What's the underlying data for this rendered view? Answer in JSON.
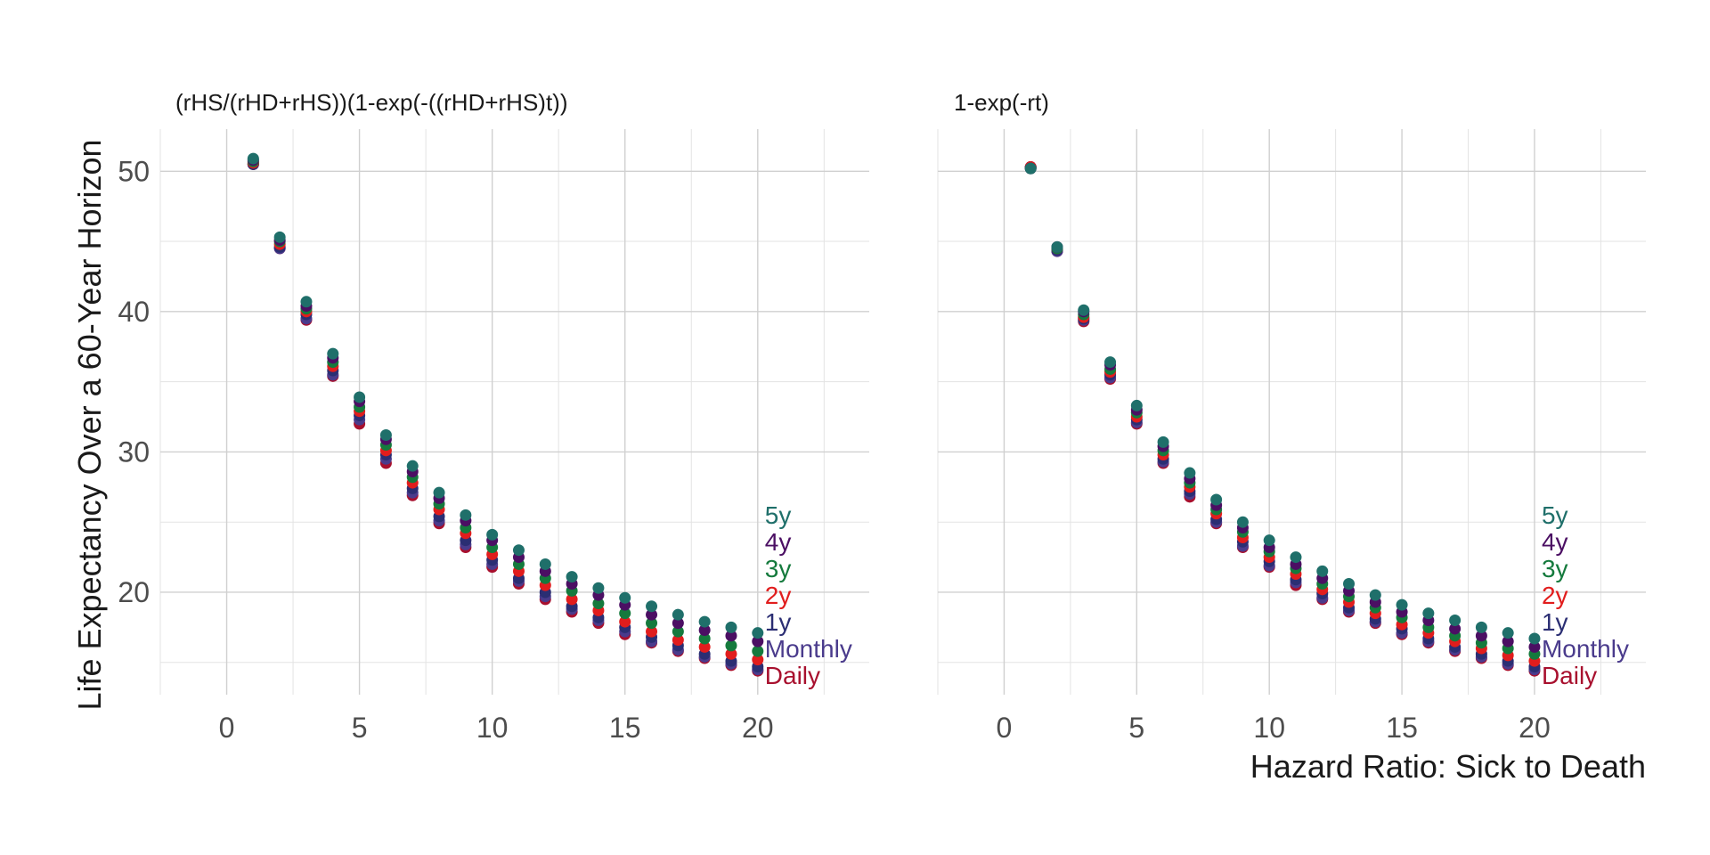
{
  "chart_data": {
    "type": "scatter",
    "ylabel": "Life Expectancy Over a 60-Year Horizon",
    "xlabel": "Hazard Ratio: Sick to Death",
    "xlim": [
      -2.5,
      24.2
    ],
    "ylim": [
      12.7,
      53
    ],
    "x_ticks": [
      "0",
      "5",
      "10",
      "15",
      "20"
    ],
    "y_ticks": [
      "20",
      "30",
      "40",
      "50"
    ],
    "grid": true,
    "x": [
      1,
      2,
      3,
      4,
      5,
      6,
      7,
      8,
      9,
      10,
      11,
      12,
      13,
      14,
      15,
      16,
      17,
      18,
      19,
      20
    ],
    "series_order": [
      "Daily",
      "Monthly",
      "1y",
      "2y",
      "3y",
      "4y",
      "5y"
    ],
    "series_colors": {
      "5y": "#1f6f6a",
      "4y": "#4b0f63",
      "3y": "#157a3d",
      "2y": "#e11d1d",
      "1y": "#2b2e73",
      "Monthly": "#4a3b8c",
      "Daily": "#a8102e"
    },
    "panels": [
      {
        "title": "(rHS/(rHD+rHS))(1-exp(-((rHD+rHS)t))",
        "series": [
          {
            "name": "5y",
            "values": [
              50.9,
              45.3,
              40.7,
              37.0,
              33.9,
              31.2,
              29.0,
              27.1,
              25.5,
              24.1,
              23.0,
              22.0,
              21.1,
              20.3,
              19.6,
              19.0,
              18.4,
              17.9,
              17.5,
              17.1
            ]
          },
          {
            "name": "4y",
            "values": [
              50.8,
              45.1,
              40.4,
              36.7,
              33.6,
              30.9,
              28.6,
              26.7,
              25.1,
              23.7,
              22.5,
              21.5,
              20.6,
              19.8,
              19.1,
              18.4,
              17.8,
              17.3,
              16.9,
              16.5
            ]
          },
          {
            "name": "3y",
            "values": [
              50.7,
              45.0,
              40.2,
              36.4,
              33.2,
              30.5,
              28.2,
              26.3,
              24.6,
              23.2,
              22.0,
              21.0,
              20.1,
              19.2,
              18.5,
              17.8,
              17.2,
              16.7,
              16.2,
              15.8
            ]
          },
          {
            "name": "2y",
            "values": [
              50.6,
              44.8,
              40.0,
              36.1,
              32.9,
              30.1,
              27.8,
              25.9,
              24.2,
              22.7,
              21.5,
              20.5,
              19.5,
              18.7,
              17.9,
              17.2,
              16.6,
              16.1,
              15.6,
              15.2
            ]
          },
          {
            "name": "1y",
            "values": [
              50.5,
              44.6,
              39.8,
              35.8,
              32.6,
              29.8,
              27.4,
              25.4,
              23.7,
              22.3,
              21.0,
              20.0,
              19.0,
              18.2,
              17.5,
              16.8,
              16.2,
              15.6,
              15.1,
              14.7
            ]
          },
          {
            "name": "Monthly",
            "values": [
              50.5,
              44.5,
              39.5,
              35.5,
              32.3,
              29.5,
              27.1,
              25.1,
              23.4,
              22.0,
              20.8,
              19.7,
              18.8,
              18.0,
              17.2,
              16.5,
              15.9,
              15.4,
              14.9,
              14.5
            ]
          },
          {
            "name": "Daily",
            "values": [
              50.5,
              44.5,
              39.4,
              35.4,
              32.0,
              29.2,
              26.9,
              24.9,
              23.2,
              21.8,
              20.6,
              19.5,
              18.6,
              17.8,
              17.0,
              16.4,
              15.8,
              15.3,
              14.8,
              14.4
            ]
          }
        ]
      },
      {
        "title": "1-exp(-rt)",
        "series": [
          {
            "name": "5y",
            "values": [
              50.2,
              44.6,
              40.1,
              36.4,
              33.3,
              30.7,
              28.5,
              26.6,
              25.0,
              23.7,
              22.5,
              21.5,
              20.6,
              19.8,
              19.1,
              18.5,
              18.0,
              17.5,
              17.1,
              16.7
            ]
          },
          {
            "name": "4y",
            "values": [
              50.2,
              44.6,
              40.0,
              36.2,
              33.0,
              30.4,
              28.1,
              26.2,
              24.6,
              23.2,
              22.0,
              21.0,
              20.1,
              19.3,
              18.6,
              18.0,
              17.4,
              16.9,
              16.5,
              16.1
            ]
          },
          {
            "name": "3y",
            "values": [
              50.2,
              44.5,
              39.8,
              35.9,
              32.8,
              30.1,
              27.8,
              25.9,
              24.3,
              22.9,
              21.7,
              20.6,
              19.7,
              18.9,
              18.2,
              17.5,
              16.9,
              16.4,
              16.0,
              15.6
            ]
          },
          {
            "name": "2y",
            "values": [
              50.3,
              44.5,
              39.6,
              35.7,
              32.5,
              29.8,
              27.5,
              25.6,
              23.9,
              22.5,
              21.3,
              20.2,
              19.3,
              18.5,
              17.7,
              17.1,
              16.5,
              16.0,
              15.5,
              15.1
            ]
          },
          {
            "name": "1y",
            "values": [
              50.3,
              44.4,
              39.5,
              35.5,
              32.3,
              29.5,
              27.2,
              25.2,
              23.6,
              22.2,
              20.9,
              19.9,
              18.9,
              18.1,
              17.4,
              16.7,
              16.1,
              15.6,
              15.1,
              14.7
            ]
          },
          {
            "name": "Monthly",
            "values": [
              50.3,
              44.3,
              39.4,
              35.3,
              32.1,
              29.3,
              27.0,
              25.0,
              23.3,
              21.9,
              20.7,
              19.6,
              18.7,
              17.9,
              17.1,
              16.5,
              15.9,
              15.4,
              14.9,
              14.5
            ]
          },
          {
            "name": "Daily",
            "values": [
              50.3,
              44.3,
              39.3,
              35.2,
              32.0,
              29.2,
              26.8,
              24.9,
              23.2,
              21.8,
              20.5,
              19.5,
              18.6,
              17.8,
              17.0,
              16.4,
              15.8,
              15.3,
              14.8,
              14.4
            ]
          }
        ]
      }
    ]
  }
}
